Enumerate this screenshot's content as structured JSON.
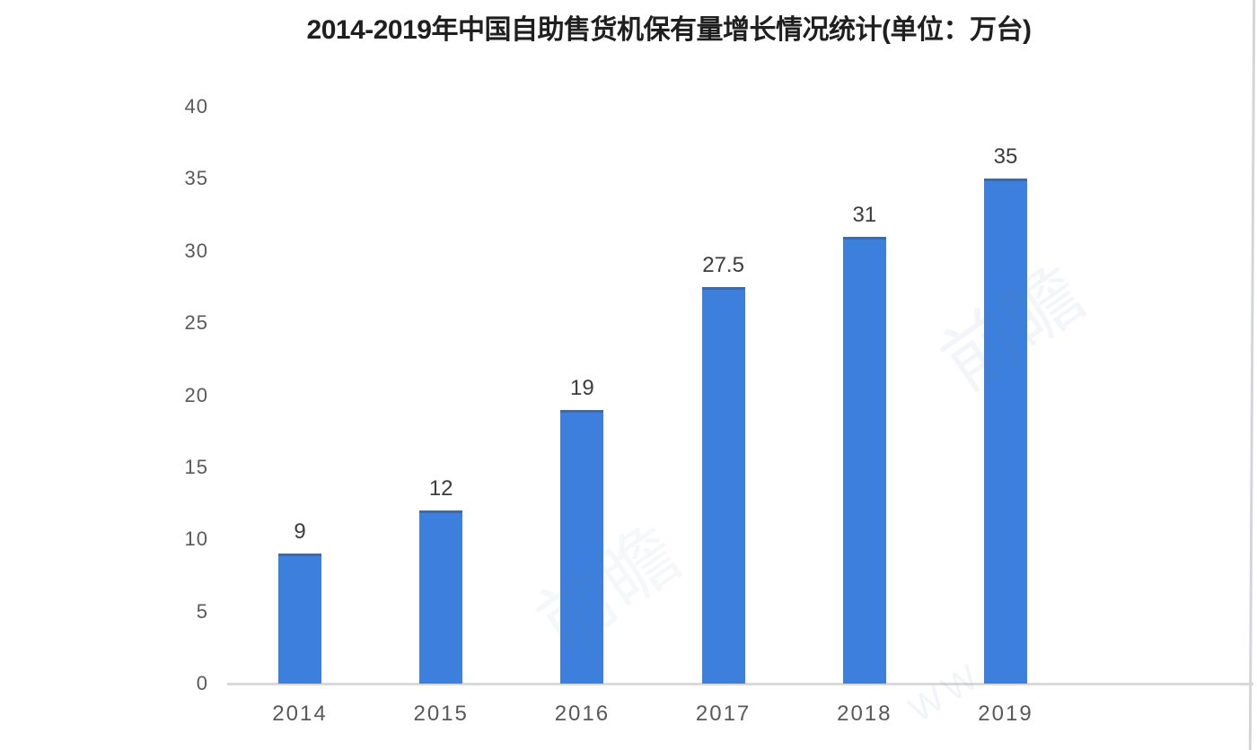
{
  "title": "2014-2019年中国自助售货机保有量增长情况统计(单位：万台)",
  "chart_data": {
    "type": "bar",
    "title": "2014-2019年中国自助售货机保有量增长情况统计(单位：万台)",
    "categories": [
      "2014",
      "2015",
      "2016",
      "2017",
      "2018",
      "2019"
    ],
    "values": [
      9,
      12,
      19,
      27.5,
      31,
      35
    ],
    "value_labels": [
      "9",
      "12",
      "19",
      "27.5",
      "31",
      "35"
    ],
    "xlabel": "",
    "ylabel": "",
    "ylim": [
      0,
      40
    ],
    "yticks": [
      0,
      5,
      10,
      15,
      20,
      25,
      30,
      35,
      40
    ],
    "grid": false,
    "legend": "none",
    "bar_color": "#3d7fdc"
  },
  "colors": {
    "bar": "#3d7fdc",
    "bar_top_edge": "#4a586c",
    "title_text": "#1f1f1f",
    "value_label": "#3c3c3c",
    "axis_label": "#595959",
    "axis_line": "#d9d9d9",
    "scan_edge": "#d3d5d9",
    "watermark": "#6d80a3"
  },
  "watermark": {
    "fragments": [
      "前瞻",
      "前瞻",
      "WW"
    ]
  }
}
